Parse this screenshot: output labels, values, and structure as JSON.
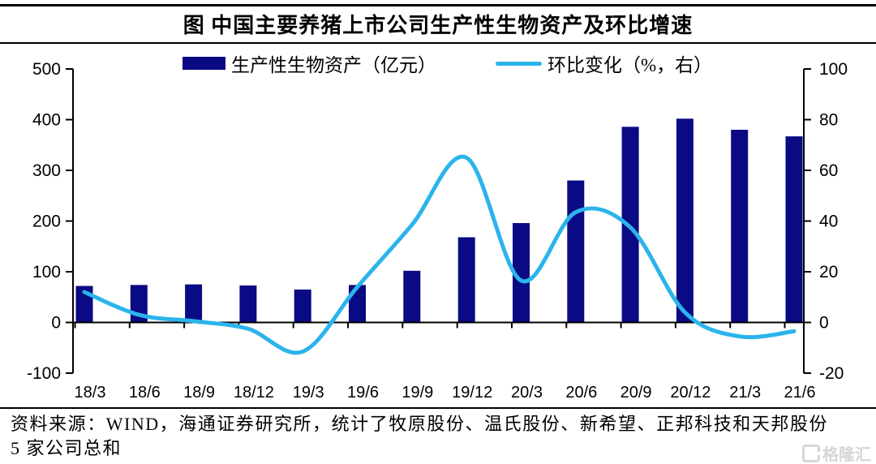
{
  "title": "图  中国主要养猪上市公司生产性生物资产及环比增速",
  "legend": {
    "bar_label": "生产性生物资产（亿元）",
    "line_label": "环比变化（%，右）"
  },
  "source_note": "资料来源：WIND，海通证券研究所，统计了牧原股份、温氏股份、新希望、正邦科技和天邦股份 5 家公司总和",
  "watermark": {
    "icon_letter": "G",
    "brand": "格隆汇"
  },
  "colors": {
    "bar": "#0a0a84",
    "line": "#2bb4ec",
    "axis": "#000000",
    "text": "#000000",
    "watermark": "#d6d6d6"
  },
  "chart_data": {
    "type": "bar+line",
    "title": "图  中国主要养猪上市公司生产性生物资产及环比增速",
    "categories": [
      "18/3",
      "18/6",
      "18/9",
      "18/12",
      "19/3",
      "19/6",
      "19/9",
      "19/12",
      "20/3",
      "20/6",
      "20/9",
      "20/12",
      "21/3",
      "21/6"
    ],
    "series": [
      {
        "name": "生产性生物资产（亿元）",
        "type": "bar",
        "axis": "left",
        "values": [
          72,
          74,
          75,
          73,
          65,
          74,
          102,
          168,
          196,
          280,
          386,
          402,
          380,
          367
        ]
      },
      {
        "name": "环比变化（%，右）",
        "type": "line",
        "axis": "right",
        "values": [
          12,
          3,
          0.5,
          -2.5,
          -11.5,
          14,
          38.5,
          65,
          16.5,
          43.5,
          37.5,
          4,
          -5.5,
          -3.5
        ]
      }
    ],
    "left_axis": {
      "label": "亿元",
      "min": -100,
      "max": 500,
      "ticks": [
        500,
        400,
        300,
        200,
        100,
        0,
        -100
      ]
    },
    "right_axis": {
      "label": "%",
      "min": -20,
      "max": 100,
      "ticks": [
        100,
        80,
        60,
        40,
        20,
        0,
        -20
      ]
    },
    "grid": false,
    "legend_position": "top"
  }
}
